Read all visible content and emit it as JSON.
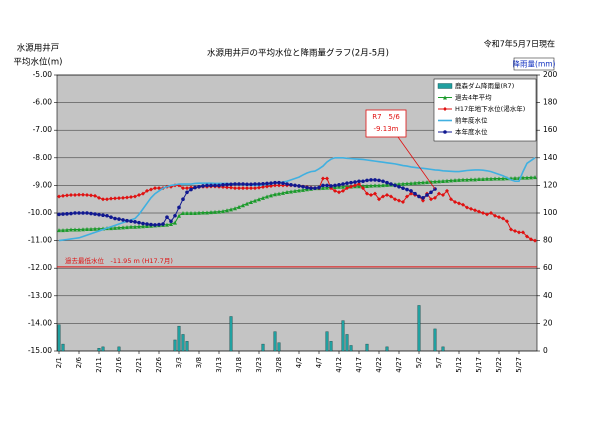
{
  "chart_data": {
    "type": "line",
    "title": "水源用井戸の平均水位と降雨量グラフ(2月-5月)",
    "date_note": "令和7年5月7日現在",
    "y_label": [
      "水源用井戸",
      "平均水位(m)"
    ],
    "y2_label": "降雨量(mm)",
    "categories": [
      "2/1",
      null,
      null,
      null,
      null,
      "2/6",
      null,
      null,
      null,
      null,
      "2/11",
      null,
      null,
      null,
      null,
      "2/16",
      null,
      null,
      null,
      null,
      "2/21",
      null,
      null,
      null,
      null,
      "2/26",
      null,
      null,
      null,
      null,
      "3/3",
      null,
      null,
      null,
      null,
      "3/8",
      null,
      null,
      null,
      null,
      "3/13",
      null,
      null,
      null,
      null,
      "3/18",
      null,
      null,
      null,
      null,
      "3/23",
      null,
      null,
      null,
      null,
      "3/28",
      null,
      null,
      null,
      null,
      "4/2",
      null,
      null,
      null,
      null,
      "4/7",
      null,
      null,
      null,
      null,
      "4/12",
      null,
      null,
      null,
      null,
      "4/17",
      null,
      null,
      null,
      null,
      "4/22",
      null,
      null,
      null,
      null,
      "4/27",
      null,
      null,
      null,
      null,
      "5/2",
      null,
      null,
      null,
      null,
      "5/7",
      null,
      null,
      null,
      null,
      "5/12",
      null,
      null,
      null,
      null,
      "5/17",
      null,
      null,
      null,
      null,
      "5/22",
      null,
      null,
      null,
      null,
      "5/27",
      null,
      null,
      null,
      null
    ],
    "ylim": [
      -15,
      -5
    ],
    "yticks": [
      {
        "value": -5,
        "label": "-5.00"
      },
      {
        "value": -6,
        "label": "-6.00"
      },
      {
        "value": -7,
        "label": "-7.00"
      },
      {
        "value": -8,
        "label": "-8.00"
      },
      {
        "value": -9,
        "label": "-9.00"
      },
      {
        "value": -10,
        "label": "-10.00"
      },
      {
        "value": -11,
        "label": "-11.00"
      },
      {
        "value": -12,
        "label": "-12.00"
      },
      {
        "value": -13,
        "label": "-13.00"
      },
      {
        "value": -14,
        "label": "-14.00"
      },
      {
        "value": -15,
        "label": "-15.00"
      }
    ],
    "y2lim": [
      0,
      200
    ],
    "y2ticks": [
      0,
      20,
      40,
      60,
      80,
      100,
      120,
      140,
      160,
      180,
      200
    ],
    "grid": true,
    "legend": "upper right",
    "series": [
      {
        "name": "鹿森ダム降雨量(R7)",
        "type": "bar",
        "axis": "y2",
        "color": "#20a0a0",
        "values": [
          19,
          5,
          0,
          0,
          0,
          0,
          0,
          0,
          0,
          0,
          2,
          3,
          0,
          0,
          0,
          3,
          0,
          0,
          0,
          0,
          0,
          0,
          0,
          0,
          0,
          0,
          0,
          0,
          0,
          8,
          18,
          12,
          7,
          0,
          0,
          0,
          0,
          0,
          0,
          0,
          0,
          0,
          0,
          25,
          0,
          0,
          0,
          0,
          0,
          0,
          0,
          5,
          0,
          0,
          14,
          6,
          0,
          0,
          0,
          0,
          0,
          0,
          0,
          0,
          0,
          0,
          0,
          14,
          7,
          0,
          0,
          22,
          12,
          4,
          0,
          0,
          0,
          5,
          0,
          0,
          0,
          0,
          3,
          0,
          0,
          0,
          0,
          0,
          0,
          0,
          33,
          0,
          0,
          0,
          16,
          0,
          3,
          0,
          0,
          0,
          0,
          0,
          0,
          0,
          0,
          0,
          0,
          0,
          0,
          0,
          0,
          0,
          0,
          0,
          0,
          0,
          0,
          0,
          0,
          0
        ]
      },
      {
        "name": "過去4年平均",
        "type": "line",
        "marker": "triangle",
        "color": "#1a9a2a",
        "values": [
          -10.62,
          -10.62,
          -10.61,
          -10.6,
          -10.6,
          -10.6,
          -10.59,
          -10.58,
          -10.58,
          -10.57,
          -10.57,
          -10.56,
          -10.55,
          -10.55,
          -10.54,
          -10.53,
          -10.52,
          -10.51,
          -10.5,
          -10.5,
          -10.49,
          -10.48,
          -10.47,
          -10.46,
          -10.45,
          -10.44,
          -10.43,
          -10.42,
          -10.4,
          -10.35,
          -10.1,
          -10.0,
          -10.0,
          -10.0,
          -10.0,
          -9.99,
          -9.98,
          -9.98,
          -9.97,
          -9.96,
          -9.95,
          -9.93,
          -9.9,
          -9.87,
          -9.83,
          -9.78,
          -9.72,
          -9.66,
          -9.6,
          -9.55,
          -9.5,
          -9.45,
          -9.4,
          -9.36,
          -9.32,
          -9.3,
          -9.27,
          -9.24,
          -9.22,
          -9.2,
          -9.18,
          -9.16,
          -9.14,
          -9.12,
          -9.1,
          -9.1,
          -9.09,
          -9.08,
          -9.07,
          -9.06,
          -9.05,
          -9.05,
          -9.04,
          -9.04,
          -9.03,
          -9.03,
          -9.02,
          -9.02,
          -9.01,
          -9.0,
          -9.0,
          -8.99,
          -8.98,
          -8.97,
          -8.96,
          -8.95,
          -8.94,
          -8.93,
          -8.92,
          -8.91,
          -8.9,
          -8.89,
          -8.88,
          -8.87,
          -8.86,
          -8.85,
          -8.84,
          -8.83,
          -8.82,
          -8.81,
          -8.8,
          -8.79,
          -8.79,
          -8.78,
          -8.78,
          -8.77,
          -8.77,
          -8.76,
          -8.76,
          -8.75,
          -8.75,
          -8.75,
          -8.74,
          -8.74,
          -8.73,
          -8.73,
          -8.72,
          -8.72,
          -8.71,
          -8.7
        ]
      },
      {
        "name": "H17年地下水位(渇水年)",
        "type": "line",
        "marker": "diamond",
        "color": "#e01010",
        "values": [
          -9.4,
          -9.38,
          -9.36,
          -9.35,
          -9.35,
          -9.34,
          -9.34,
          -9.35,
          -9.36,
          -9.38,
          -9.45,
          -9.5,
          -9.5,
          -9.48,
          -9.47,
          -9.46,
          -9.45,
          -9.44,
          -9.42,
          -9.4,
          -9.35,
          -9.3,
          -9.2,
          -9.15,
          -9.1,
          -9.1,
          -9.1,
          -9.05,
          -9.05,
          -9.0,
          -9.0,
          -9.1,
          -9.1,
          -9.08,
          -9.07,
          -9.06,
          -9.05,
          -9.05,
          -9.04,
          -9.04,
          -9.05,
          -9.06,
          -9.07,
          -9.08,
          -9.1,
          -9.1,
          -9.1,
          -9.1,
          -9.1,
          -9.1,
          -9.08,
          -9.06,
          -9.04,
          -9.02,
          -9.0,
          -9.0,
          -9.0,
          -9.0,
          -9.0,
          -9.0,
          -9.02,
          -9.04,
          -9.06,
          -9.08,
          -9.1,
          -9.1,
          -8.75,
          -8.75,
          -9.1,
          -9.2,
          -9.25,
          -9.2,
          -9.1,
          -9.05,
          -9.0,
          -8.95,
          -9.1,
          -9.3,
          -9.35,
          -9.3,
          -9.5,
          -9.4,
          -9.35,
          -9.4,
          -9.5,
          -9.55,
          -9.6,
          -9.4,
          -9.3,
          -9.35,
          -9.4,
          -9.55,
          -9.3,
          -9.5,
          -9.45,
          -9.3,
          -9.35,
          -9.2,
          -9.5,
          -9.6,
          -9.65,
          -9.7,
          -9.8,
          -9.85,
          -9.9,
          -9.95,
          -10.0,
          -10.05,
          -10.0,
          -10.1,
          -10.15,
          -10.2,
          -10.3,
          -10.6,
          -10.65,
          -10.7,
          -10.7,
          -10.85,
          -10.95,
          -11.0
        ]
      },
      {
        "name": "前年度水位",
        "type": "line",
        "marker": "none",
        "color": "#40b0e0",
        "values": [
          -11.0,
          -10.98,
          -10.96,
          -10.94,
          -10.92,
          -10.9,
          -10.85,
          -10.8,
          -10.75,
          -10.7,
          -10.65,
          -10.6,
          -10.55,
          -10.5,
          -10.45,
          -10.4,
          -10.35,
          -10.3,
          -10.25,
          -10.2,
          -10.05,
          -9.85,
          -9.65,
          -9.45,
          -9.3,
          -9.2,
          -9.1,
          -9.05,
          -9.0,
          -8.98,
          -8.95,
          -8.95,
          -8.95,
          -8.95,
          -8.93,
          -8.92,
          -8.92,
          -8.92,
          -8.92,
          -8.93,
          -8.93,
          -8.93,
          -8.93,
          -8.94,
          -8.95,
          -8.96,
          -8.97,
          -8.98,
          -8.99,
          -9.0,
          -9.0,
          -8.98,
          -8.96,
          -8.94,
          -8.92,
          -8.9,
          -8.88,
          -8.85,
          -8.8,
          -8.75,
          -8.7,
          -8.62,
          -8.55,
          -8.5,
          -8.48,
          -8.4,
          -8.3,
          -8.15,
          -8.05,
          -8.0,
          -8.0,
          -8.0,
          -8.02,
          -8.03,
          -8.04,
          -8.05,
          -8.06,
          -8.08,
          -8.1,
          -8.12,
          -8.14,
          -8.16,
          -8.18,
          -8.2,
          -8.22,
          -8.25,
          -8.28,
          -8.3,
          -8.33,
          -8.35,
          -8.37,
          -8.38,
          -8.4,
          -8.42,
          -8.44,
          -8.45,
          -8.47,
          -8.48,
          -8.49,
          -8.5,
          -8.5,
          -8.48,
          -8.46,
          -8.45,
          -8.44,
          -8.44,
          -8.45,
          -8.47,
          -8.5,
          -8.55,
          -8.6,
          -8.65,
          -8.72,
          -8.8,
          -8.85,
          -8.85,
          -8.5,
          -8.2,
          -8.1,
          -8.0
        ]
      },
      {
        "name": "本年度水位",
        "type": "line",
        "marker": "circle",
        "color": "#101890",
        "values": [
          -10.05,
          -10.04,
          -10.03,
          -10.02,
          -10.0,
          -10.0,
          -10.0,
          -10.0,
          -10.02,
          -10.04,
          -10.06,
          -10.08,
          -10.1,
          -10.15,
          -10.2,
          -10.22,
          -10.25,
          -10.28,
          -10.3,
          -10.32,
          -10.35,
          -10.38,
          -10.4,
          -10.42,
          -10.43,
          -10.42,
          -10.4,
          -10.15,
          -10.3,
          -10.1,
          -9.8,
          -9.5,
          -9.25,
          -9.15,
          -9.08,
          -9.05,
          -9.02,
          -9.0,
          -9.0,
          -9.0,
          -9.0,
          -8.98,
          -8.97,
          -8.96,
          -8.95,
          -8.95,
          -8.95,
          -8.96,
          -8.96,
          -8.95,
          -8.95,
          -8.94,
          -8.93,
          -8.92,
          -8.9,
          -8.9,
          -8.92,
          -8.95,
          -8.98,
          -9.0,
          -9.02,
          -9.05,
          -9.08,
          -9.1,
          -9.1,
          -9.08,
          -9.0,
          -9.0,
          -9.02,
          -9.0,
          -8.98,
          -8.95,
          -8.92,
          -8.9,
          -8.88,
          -8.85,
          -8.85,
          -8.82,
          -8.8,
          -8.8,
          -8.82,
          -8.85,
          -8.9,
          -8.95,
          -9.0,
          -9.05,
          -9.1,
          -9.15,
          -9.2,
          -9.3,
          -9.4,
          -9.45,
          -9.35,
          -9.25,
          -9.13,
          null,
          null,
          null,
          null,
          null,
          null,
          null,
          null,
          null,
          null,
          null,
          null,
          null,
          null,
          null,
          null,
          null,
          null,
          null,
          null,
          null,
          null,
          null,
          null,
          null
        ]
      }
    ],
    "reference_line": {
      "value": -11.95,
      "label": "過去最低水位　-11.95 m (H17.7月)",
      "color": "#e01010"
    },
    "annotation": [
      "R7　5/6",
      "-9.13m"
    ]
  }
}
